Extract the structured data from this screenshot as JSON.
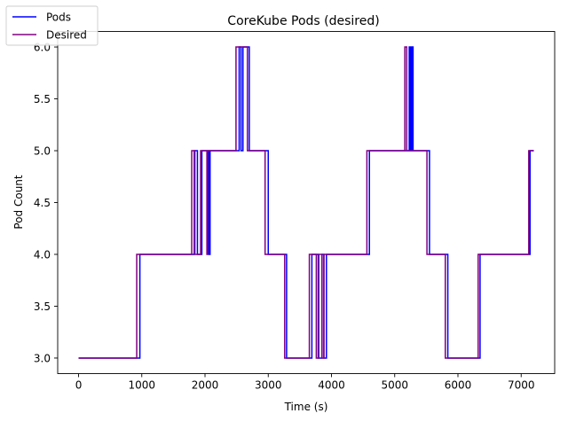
{
  "chart_data": {
    "type": "line",
    "title": "CoreKube Pods (desired)",
    "xlabel": "Time (s)",
    "ylabel": "Pod Count",
    "xlim": [
      -330,
      7530
    ],
    "ylim": [
      2.85,
      6.15
    ],
    "xticks": [
      0,
      1000,
      2000,
      3000,
      4000,
      5000,
      6000,
      7000
    ],
    "yticks": [
      3.0,
      3.5,
      4.0,
      4.5,
      5.0,
      5.5,
      6.0
    ],
    "grid": false,
    "legend_position": "top-left",
    "series": [
      {
        "name": "Pods",
        "color": "#0000ff",
        "points": [
          [
            0,
            3
          ],
          [
            970,
            3
          ],
          [
            970,
            4
          ],
          [
            1830,
            4
          ],
          [
            1830,
            5
          ],
          [
            1880,
            5
          ],
          [
            1880,
            4
          ],
          [
            1950,
            4
          ],
          [
            1950,
            5
          ],
          [
            2060,
            5
          ],
          [
            2060,
            4
          ],
          [
            2080,
            4
          ],
          [
            2080,
            5
          ],
          [
            2540,
            5
          ],
          [
            2540,
            6
          ],
          [
            2570,
            6
          ],
          [
            2570,
            5
          ],
          [
            2600,
            5
          ],
          [
            2600,
            6
          ],
          [
            2700,
            6
          ],
          [
            2700,
            5
          ],
          [
            3000,
            5
          ],
          [
            3000,
            4
          ],
          [
            3290,
            4
          ],
          [
            3290,
            3
          ],
          [
            3690,
            3
          ],
          [
            3690,
            4
          ],
          [
            3790,
            4
          ],
          [
            3790,
            3
          ],
          [
            3850,
            3
          ],
          [
            3850,
            4
          ],
          [
            3880,
            4
          ],
          [
            3880,
            3
          ],
          [
            3920,
            3
          ],
          [
            3920,
            4
          ],
          [
            4600,
            4
          ],
          [
            4600,
            5
          ],
          [
            5230,
            5
          ],
          [
            5230,
            6
          ],
          [
            5250,
            6
          ],
          [
            5250,
            5
          ],
          [
            5270,
            5
          ],
          [
            5270,
            6
          ],
          [
            5290,
            6
          ],
          [
            5290,
            5
          ],
          [
            5550,
            5
          ],
          [
            5550,
            4
          ],
          [
            5840,
            4
          ],
          [
            5840,
            3
          ],
          [
            6350,
            3
          ],
          [
            6350,
            4
          ],
          [
            7140,
            4
          ],
          [
            7140,
            5
          ],
          [
            7200,
            5
          ]
        ]
      },
      {
        "name": "Desired",
        "color": "#800080",
        "points": [
          [
            0,
            3
          ],
          [
            920,
            3
          ],
          [
            920,
            4
          ],
          [
            1790,
            4
          ],
          [
            1790,
            5
          ],
          [
            1840,
            5
          ],
          [
            1840,
            4
          ],
          [
            1930,
            4
          ],
          [
            1930,
            5
          ],
          [
            2030,
            5
          ],
          [
            2030,
            4
          ],
          [
            2040,
            4
          ],
          [
            2040,
            5
          ],
          [
            2490,
            5
          ],
          [
            2490,
            6
          ],
          [
            2670,
            6
          ],
          [
            2670,
            5
          ],
          [
            2950,
            5
          ],
          [
            2950,
            4
          ],
          [
            3260,
            4
          ],
          [
            3260,
            3
          ],
          [
            3650,
            3
          ],
          [
            3650,
            4
          ],
          [
            3760,
            4
          ],
          [
            3760,
            3
          ],
          [
            3800,
            3
          ],
          [
            3800,
            4
          ],
          [
            3850,
            4
          ],
          [
            3850,
            3
          ],
          [
            3880,
            3
          ],
          [
            3880,
            4
          ],
          [
            4560,
            4
          ],
          [
            4560,
            5
          ],
          [
            5160,
            5
          ],
          [
            5160,
            6
          ],
          [
            5190,
            6
          ],
          [
            5190,
            5
          ],
          [
            5510,
            5
          ],
          [
            5510,
            4
          ],
          [
            5800,
            4
          ],
          [
            5800,
            3
          ],
          [
            6320,
            3
          ],
          [
            6320,
            4
          ],
          [
            7120,
            4
          ],
          [
            7120,
            5
          ],
          [
            7200,
            5
          ]
        ]
      }
    ]
  }
}
